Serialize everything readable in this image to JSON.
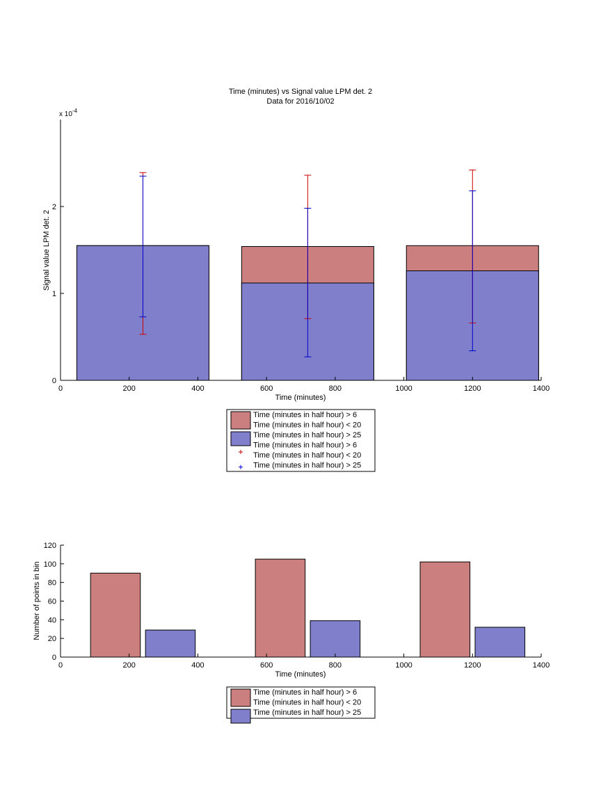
{
  "chart_data": [
    {
      "type": "bar",
      "title": "Time (minutes) vs Signal value LPM det. 2",
      "subtitle": "Data for 2016/10/02",
      "xlabel": "Time (minutes)",
      "ylabel": "Signal value LPM det. 2",
      "y_exponent_label": "x 10",
      "y_exponent_power": "-4",
      "xlim": [
        0,
        1400
      ],
      "ylim": [
        0,
        3
      ],
      "x_ticks": [
        0,
        200,
        400,
        600,
        800,
        1000,
        1200,
        1400
      ],
      "x_tick_labels": [
        "0",
        "200",
        "400",
        "600",
        "800",
        "1000",
        "1200",
        "1400"
      ],
      "y_ticks": [
        0,
        1,
        2
      ],
      "y_tick_labels": [
        "0",
        "1",
        "2"
      ],
      "bar_width": 385,
      "series": [
        {
          "name": "Time (minutes in half hour) > 6\nTime (minutes in half hour) < 20",
          "color": "#cc7f7f",
          "x": [
            240,
            720,
            1200
          ],
          "values": [
            1.55,
            1.54,
            1.55
          ]
        },
        {
          "name": "Time (minutes in half hour) > 25",
          "color": "#7f7fcc",
          "x": [
            240,
            720,
            1200
          ],
          "values": [
            1.55,
            1.12,
            1.26
          ]
        }
      ],
      "error_bars": [
        {
          "name": "Time (minutes in half hour) > 6\nTime (minutes in half hour) < 20",
          "color": "#cc0000",
          "x": [
            240,
            720,
            1200
          ],
          "lower": [
            0.53,
            0.71,
            0.66
          ],
          "upper": [
            2.39,
            2.36,
            2.42
          ]
        },
        {
          "name": "Time (minutes in half hour) > 25",
          "color": "#0000cc",
          "x": [
            240,
            720,
            1200
          ],
          "lower": [
            0.73,
            0.27,
            0.34
          ],
          "upper": [
            2.35,
            1.98,
            2.18
          ]
        }
      ],
      "legend_placement": "below",
      "legend": [
        {
          "kind": "patch",
          "color": "#cc7f7f",
          "lines": [
            "Time (minutes in half hour) > 6",
            "Time (minutes in half hour) < 20"
          ]
        },
        {
          "kind": "patch",
          "color": "#7f7fcc",
          "lines": [
            "Time (minutes in half hour) > 25"
          ]
        },
        {
          "kind": "marker",
          "color": "#cc0000",
          "lines": [
            "Time (minutes in half hour) > 6",
            "Time (minutes in half hour) < 20"
          ]
        },
        {
          "kind": "marker",
          "color": "#0000cc",
          "lines": [
            "Time (minutes in half hour) > 25"
          ]
        }
      ],
      "grid": false
    },
    {
      "type": "bar",
      "title": "",
      "xlabel": "Time (minutes)",
      "ylabel": "Number of points in bin",
      "xlim": [
        0,
        1400
      ],
      "ylim": [
        0,
        120
      ],
      "x_ticks": [
        0,
        200,
        400,
        600,
        800,
        1000,
        1200,
        1400
      ],
      "x_tick_labels": [
        "0",
        "200",
        "400",
        "600",
        "800",
        "1000",
        "1200",
        "1400"
      ],
      "y_ticks": [
        0,
        20,
        40,
        60,
        80,
        100,
        120
      ],
      "y_tick_labels": [
        "0",
        "20",
        "40",
        "60",
        "80",
        "100",
        "120"
      ],
      "bar_width": 145,
      "series": [
        {
          "name": "Time (minutes in half hour) > 6\nTime (minutes in half hour) < 20",
          "color": "#cc7f7f",
          "x": [
            160,
            640,
            1120
          ],
          "values": [
            90,
            105,
            102
          ]
        },
        {
          "name": "Time (minutes in half hour) > 25",
          "color": "#7f7fcc",
          "x": [
            320,
            800,
            1280
          ],
          "values": [
            29,
            39,
            32
          ]
        }
      ],
      "legend_placement": "below",
      "legend": [
        {
          "kind": "patch",
          "color": "#cc7f7f",
          "lines": [
            "Time (minutes in half hour) > 6",
            "Time (minutes in half hour) < 20"
          ]
        },
        {
          "kind": "patch",
          "color": "#7f7fcc",
          "lines": [
            "Time (minutes in half hour) > 25"
          ]
        }
      ],
      "grid": false
    }
  ]
}
